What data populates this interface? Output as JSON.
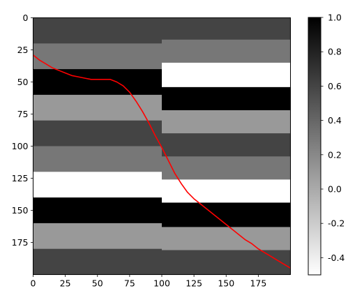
{
  "chart_data": {
    "type": "heatmap",
    "title": "",
    "xlabel": "",
    "ylabel": "",
    "xlim": [
      0,
      200
    ],
    "ylim": [
      200,
      0
    ],
    "x_ticks": [
      0,
      25,
      50,
      75,
      100,
      125,
      150,
      175
    ],
    "x_tick_labels": [
      "0",
      "25",
      "50",
      "75",
      "100",
      "125",
      "150",
      "175"
    ],
    "y_ticks": [
      0,
      25,
      50,
      75,
      100,
      125,
      150,
      175
    ],
    "y_tick_labels": [
      "0",
      "25",
      "50",
      "75",
      "100",
      "125",
      "150",
      "175"
    ],
    "colormap": "gray_r",
    "value_range": [
      -0.5,
      1.0
    ],
    "colorbar_ticks": [
      1.0,
      0.8,
      0.6,
      0.4,
      0.2,
      0.0,
      -0.2,
      -0.4
    ],
    "colorbar_tick_labels": [
      "1.0",
      "0.8",
      "0.6",
      "0.4",
      "0.2",
      "0.0",
      "-0.2",
      "-0.4"
    ],
    "left_bands": [
      {
        "y_start": 0,
        "y_end": 20,
        "value": 0.6
      },
      {
        "y_start": 20,
        "y_end": 40,
        "value": 0.3
      },
      {
        "y_start": 40,
        "y_end": 60,
        "value": 1.0
      },
      {
        "y_start": 60,
        "y_end": 80,
        "value": 0.1
      },
      {
        "y_start": 80,
        "y_end": 100,
        "value": 0.6
      },
      {
        "y_start": 100,
        "y_end": 120,
        "value": 0.3
      },
      {
        "y_start": 120,
        "y_end": 140,
        "value": -0.5
      },
      {
        "y_start": 140,
        "y_end": 160,
        "value": 1.0
      },
      {
        "y_start": 160,
        "y_end": 180,
        "value": 0.1
      },
      {
        "y_start": 180,
        "y_end": 200,
        "value": 0.6
      }
    ],
    "right_bands": [
      {
        "y_start": 0,
        "y_end": 17,
        "value": 0.6
      },
      {
        "y_start": 17,
        "y_end": 35,
        "value": 0.3
      },
      {
        "y_start": 35,
        "y_end": 54,
        "value": -0.5
      },
      {
        "y_start": 54,
        "y_end": 72,
        "value": 1.0
      },
      {
        "y_start": 72,
        "y_end": 90,
        "value": 0.1
      },
      {
        "y_start": 90,
        "y_end": 108,
        "value": 0.6
      },
      {
        "y_start": 108,
        "y_end": 126,
        "value": 0.3
      },
      {
        "y_start": 126,
        "y_end": 144,
        "value": -0.5
      },
      {
        "y_start": 144,
        "y_end": 163,
        "value": 1.0
      },
      {
        "y_start": 163,
        "y_end": 181,
        "value": 0.1
      },
      {
        "y_start": 181,
        "y_end": 200,
        "value": 0.6
      }
    ],
    "series": [
      {
        "name": "boundary",
        "color": "#ff0000",
        "x": [
          0,
          5,
          10,
          15,
          20,
          25,
          30,
          35,
          40,
          45,
          50,
          55,
          60,
          65,
          70,
          75,
          80,
          85,
          90,
          95,
          100,
          105,
          110,
          115,
          120,
          125,
          130,
          135,
          140,
          145,
          150,
          155,
          160,
          165,
          170,
          175,
          180,
          185,
          190,
          195,
          200
        ],
        "y": [
          29,
          33,
          36,
          39,
          41,
          43,
          45,
          46,
          47,
          48,
          48,
          48,
          48,
          50,
          53,
          58,
          65,
          73,
          82,
          92,
          101,
          111,
          121,
          129,
          136,
          141,
          145,
          149,
          153,
          157,
          161,
          165,
          169,
          173,
          176,
          180,
          183,
          186,
          189,
          192,
          195
        ]
      }
    ]
  }
}
